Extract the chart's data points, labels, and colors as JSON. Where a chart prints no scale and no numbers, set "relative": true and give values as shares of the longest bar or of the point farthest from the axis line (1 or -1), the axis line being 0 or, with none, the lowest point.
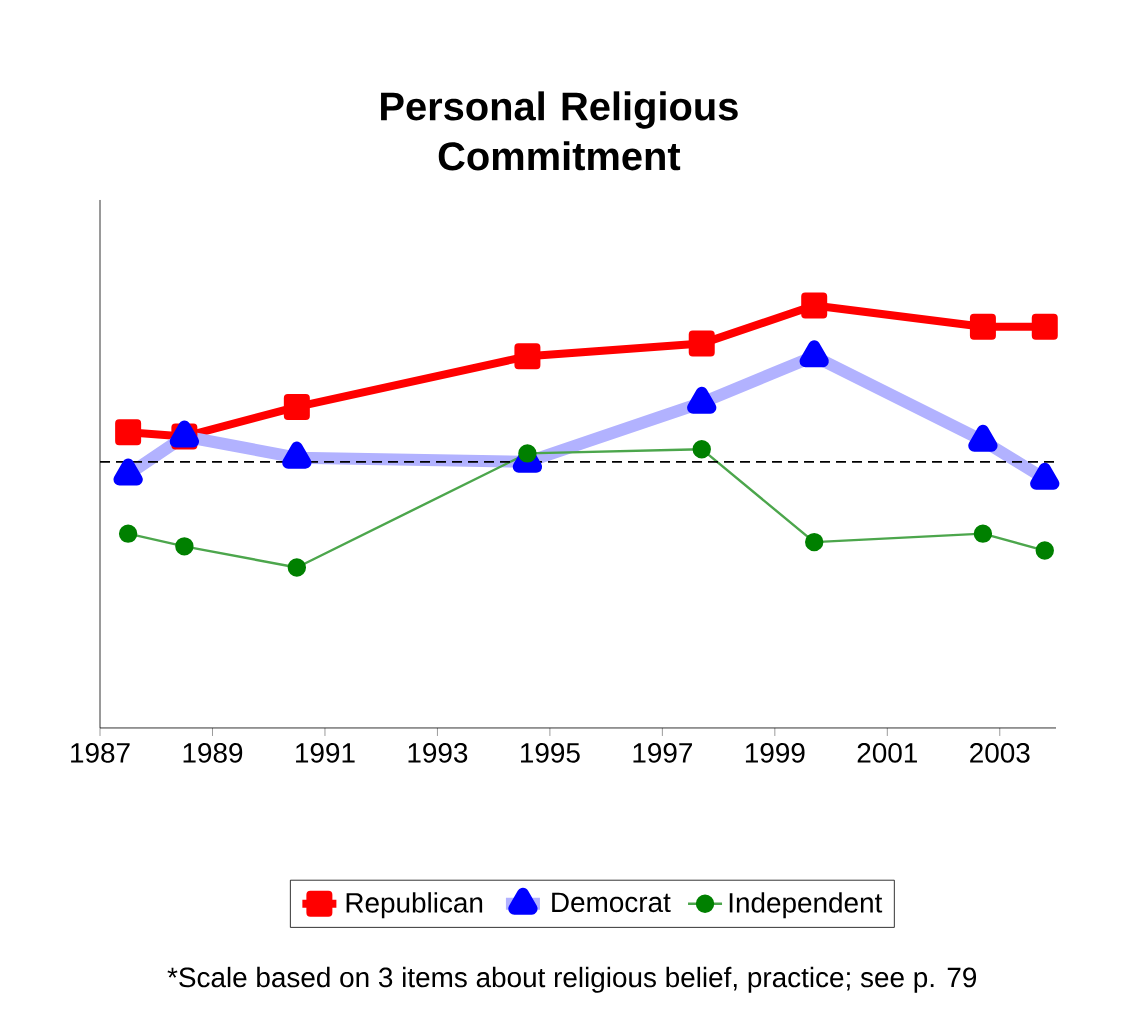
{
  "chart_data": {
    "type": "line",
    "title": "Personal Religious Commitment",
    "relative": true,
    "xlim": [
      1987,
      2004
    ],
    "xticks": [
      1987,
      1989,
      1991,
      1993,
      1995,
      1997,
      1999,
      2001,
      2003
    ],
    "x": [
      1987.5,
      1988.5,
      1990.5,
      1994.6,
      1997.7,
      1999.7,
      2002.7,
      2003.8
    ],
    "series": [
      {
        "name": "Republican",
        "color": "#ff0000",
        "marker": "square",
        "values": [
          0.7,
          0.69,
          0.76,
          0.88,
          0.91,
          1.0,
          0.95,
          0.95
        ]
      },
      {
        "name": "Democrat",
        "color": "#0000ff",
        "marker": "triangle",
        "values": [
          0.6,
          0.69,
          0.64,
          0.63,
          0.77,
          0.88,
          0.68,
          0.59
        ]
      },
      {
        "name": "Independent",
        "color": "#008000",
        "marker": "circle",
        "values": [
          0.46,
          0.43,
          0.38,
          0.65,
          0.66,
          0.44,
          0.46,
          0.42
        ]
      }
    ],
    "ref_lines": [
      {
        "axis": "y",
        "value": 0.63,
        "line_style": "dashed",
        "color": "#000000"
      }
    ],
    "legend": "bottom",
    "grid": false,
    "annotations": [
      "*Scale based on 3 items about religious belief, practice; see p. 79"
    ]
  }
}
